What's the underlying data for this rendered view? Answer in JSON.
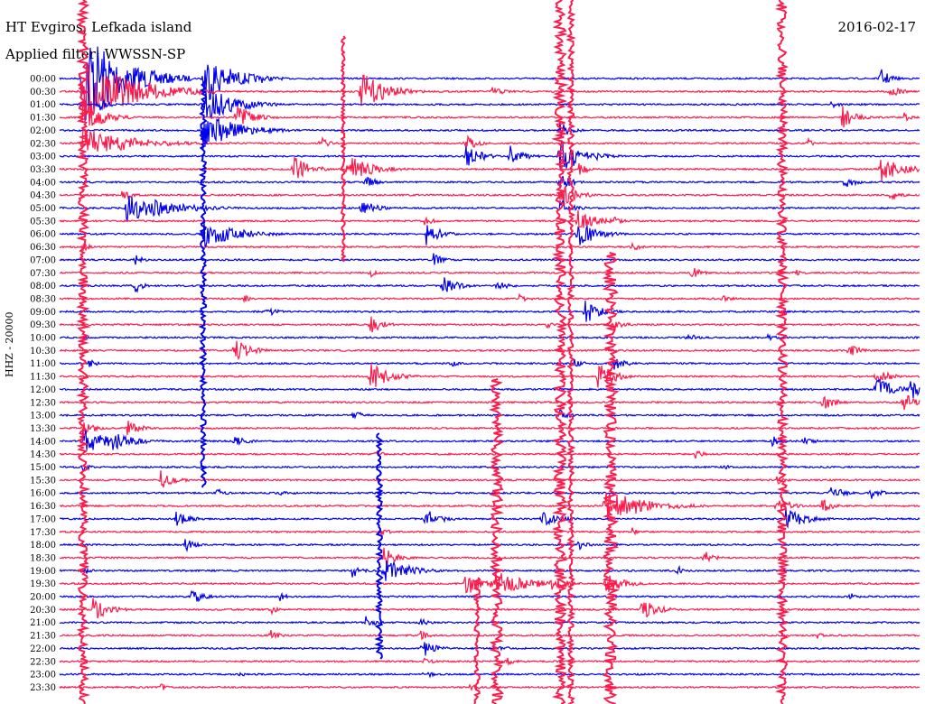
{
  "header": {
    "station": "HT Evgiros, Lefkada island",
    "filter": "Applied filter: WWSSN-SP",
    "date": "2016-02-17"
  },
  "chart_data": {
    "type": "line",
    "ylabel": "HHZ - 20000",
    "colors": {
      "even": "#0000ee",
      "odd": "#ff1a4b"
    },
    "rows": [
      "00:00",
      "00:30",
      "01:00",
      "01:30",
      "02:00",
      "02:30",
      "03:00",
      "03:30",
      "04:00",
      "04:30",
      "05:00",
      "05:30",
      "06:00",
      "06:30",
      "07:00",
      "07:30",
      "08:00",
      "08:30",
      "09:00",
      "09:30",
      "10:00",
      "10:30",
      "11:00",
      "11:30",
      "12:00",
      "12:30",
      "13:00",
      "13:30",
      "14:00",
      "14:30",
      "15:00",
      "15:30",
      "16:00",
      "16:30",
      "17:00",
      "17:30",
      "18:00",
      "18:30",
      "19:00",
      "19:30",
      "20:00",
      "20:30",
      "21:00",
      "21:30",
      "22:00",
      "22:30",
      "23:00",
      "23:30"
    ]
  }
}
